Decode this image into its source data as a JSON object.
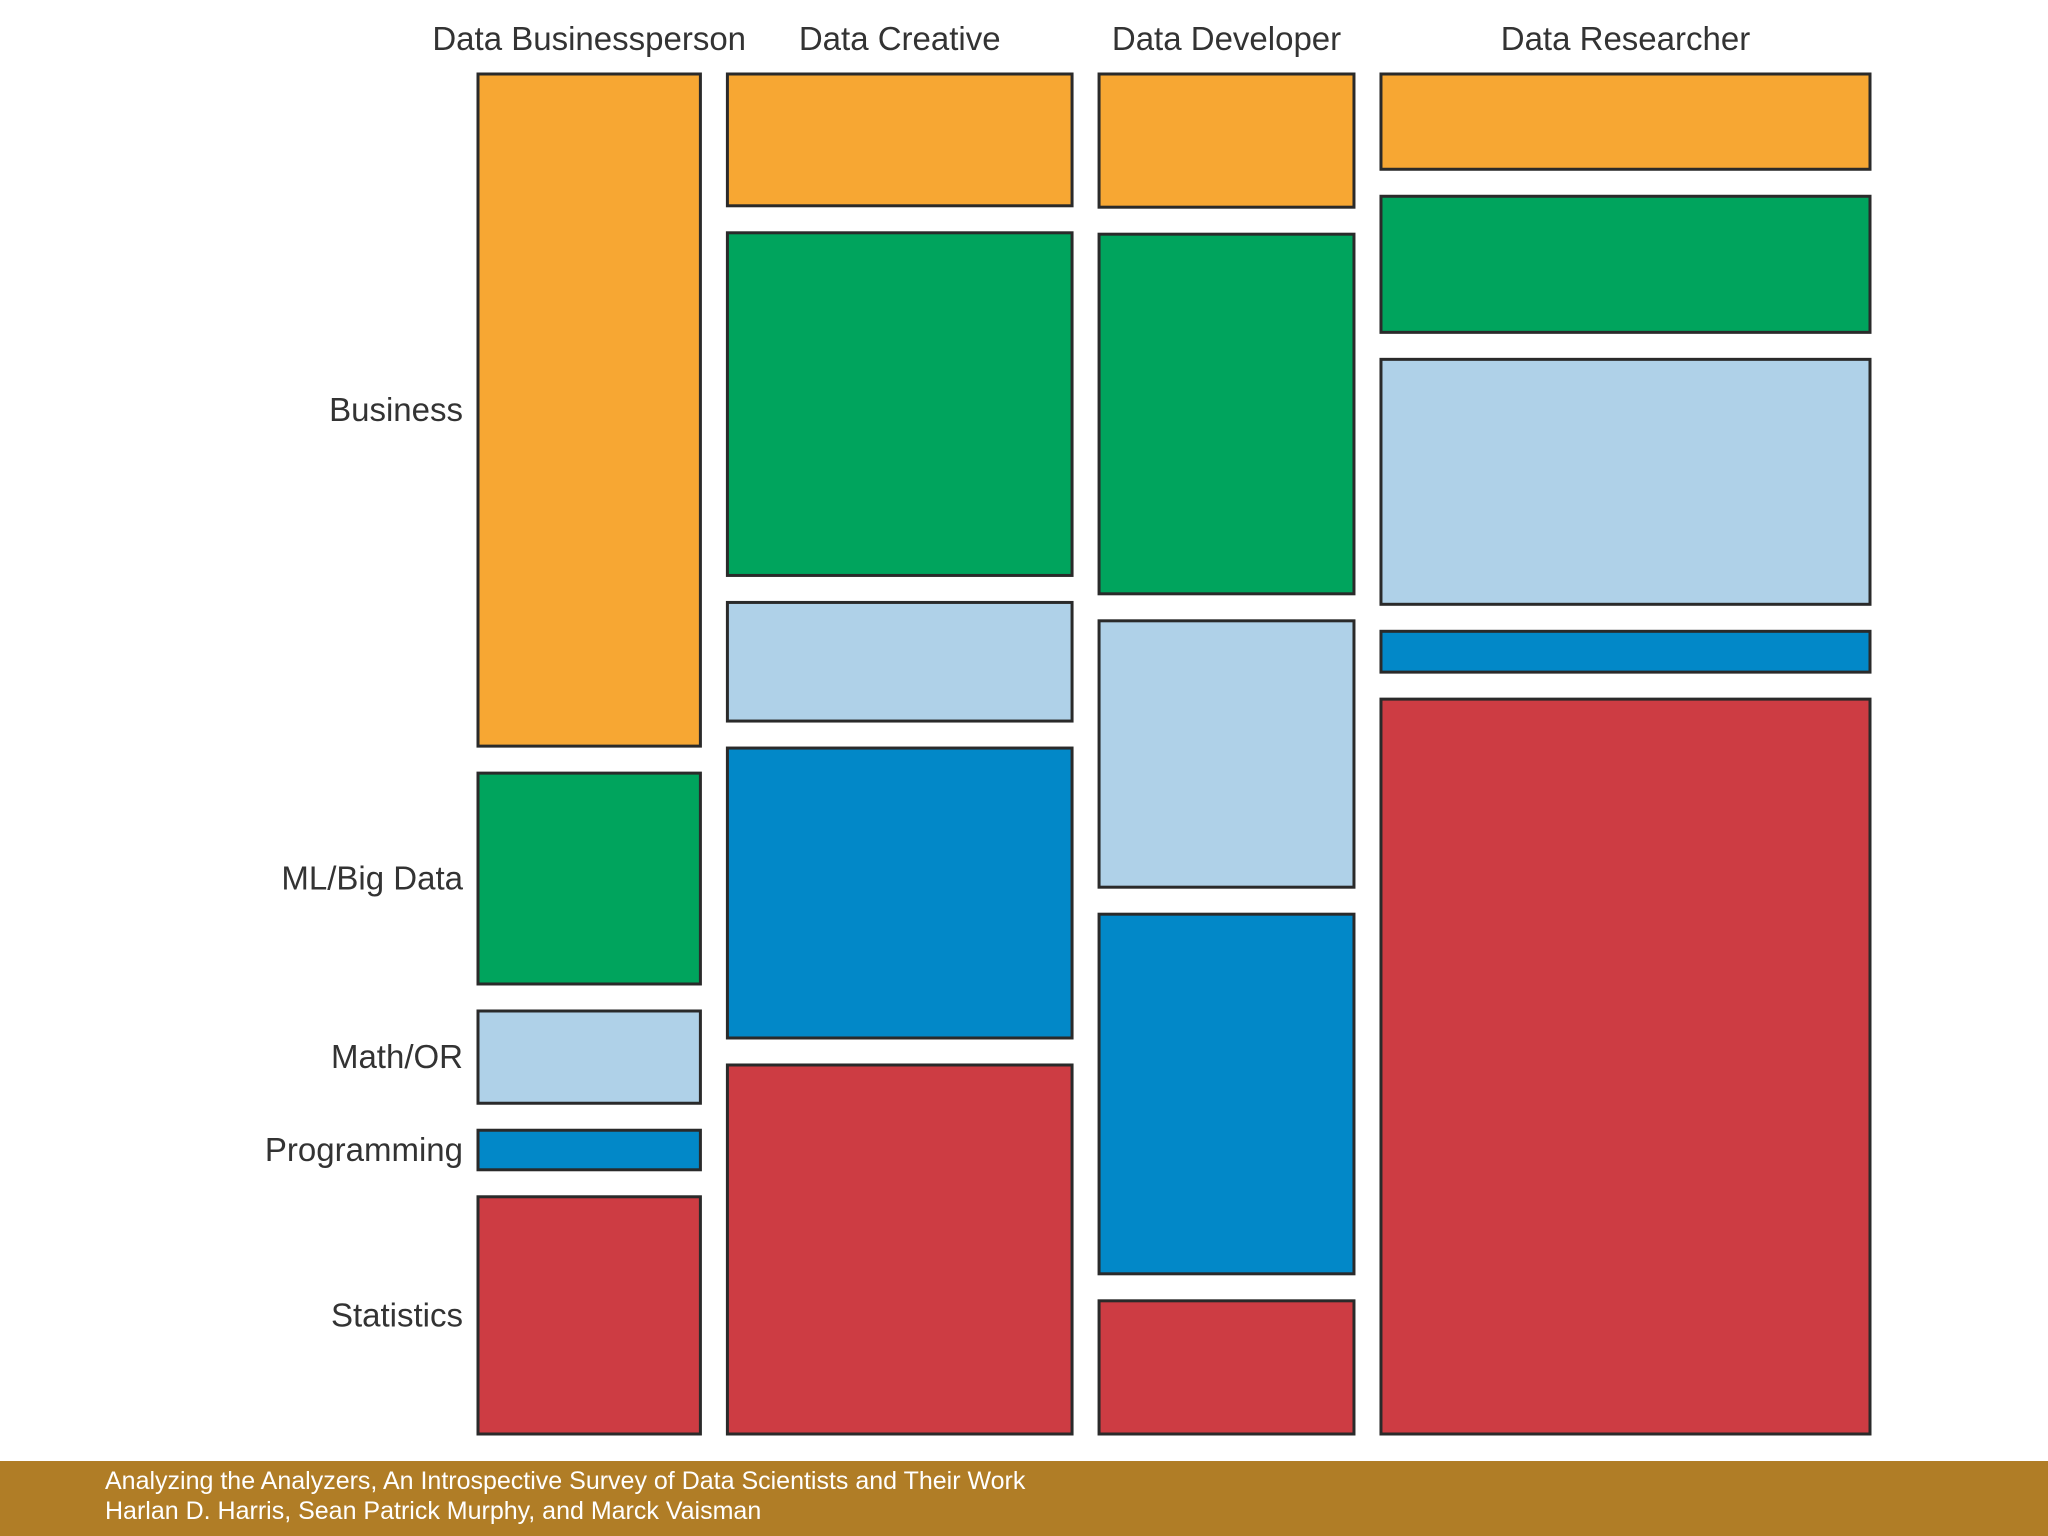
{
  "chart_data": {
    "type": "mosaic",
    "title": "",
    "categories": [
      "Data Businessperson",
      "Data Creative",
      "Data Developer",
      "Data Researcher"
    ],
    "column_shares": [
      0.171,
      0.265,
      0.196,
      0.376
    ],
    "segments": [
      "Business",
      "ML/Big Data",
      "Math/OR",
      "Programming",
      "Statistics"
    ],
    "row_axis_labels": [
      "Business",
      "ML/Big Data",
      "Math/OR",
      "Programming",
      "Statistics"
    ],
    "series": [
      {
        "name": "Business",
        "color": "#f7a733",
        "values": [
          0.51,
          0.1,
          0.1,
          0.07
        ]
      },
      {
        "name": "ML/Big Data",
        "color": "#00a45d",
        "values": [
          0.16,
          0.26,
          0.27,
          0.1
        ]
      },
      {
        "name": "Math/OR",
        "color": "#afd1e8",
        "values": [
          0.07,
          0.09,
          0.2,
          0.18
        ]
      },
      {
        "name": "Programming",
        "color": "#0288c8",
        "values": [
          0.03,
          0.22,
          0.27,
          0.03
        ]
      },
      {
        "name": "Statistics",
        "color": "#cd3c43",
        "values": [
          0.18,
          0.28,
          0.1,
          0.54
        ]
      }
    ],
    "legend": "none",
    "grid": false
  },
  "footer": {
    "line1": "Analyzing the Analyzers, An Introspective Survey of Data Scientists and Their Work",
    "line2": "Harlan D. Harris, Sean Patrick Murphy, and Marck Vaisman"
  }
}
